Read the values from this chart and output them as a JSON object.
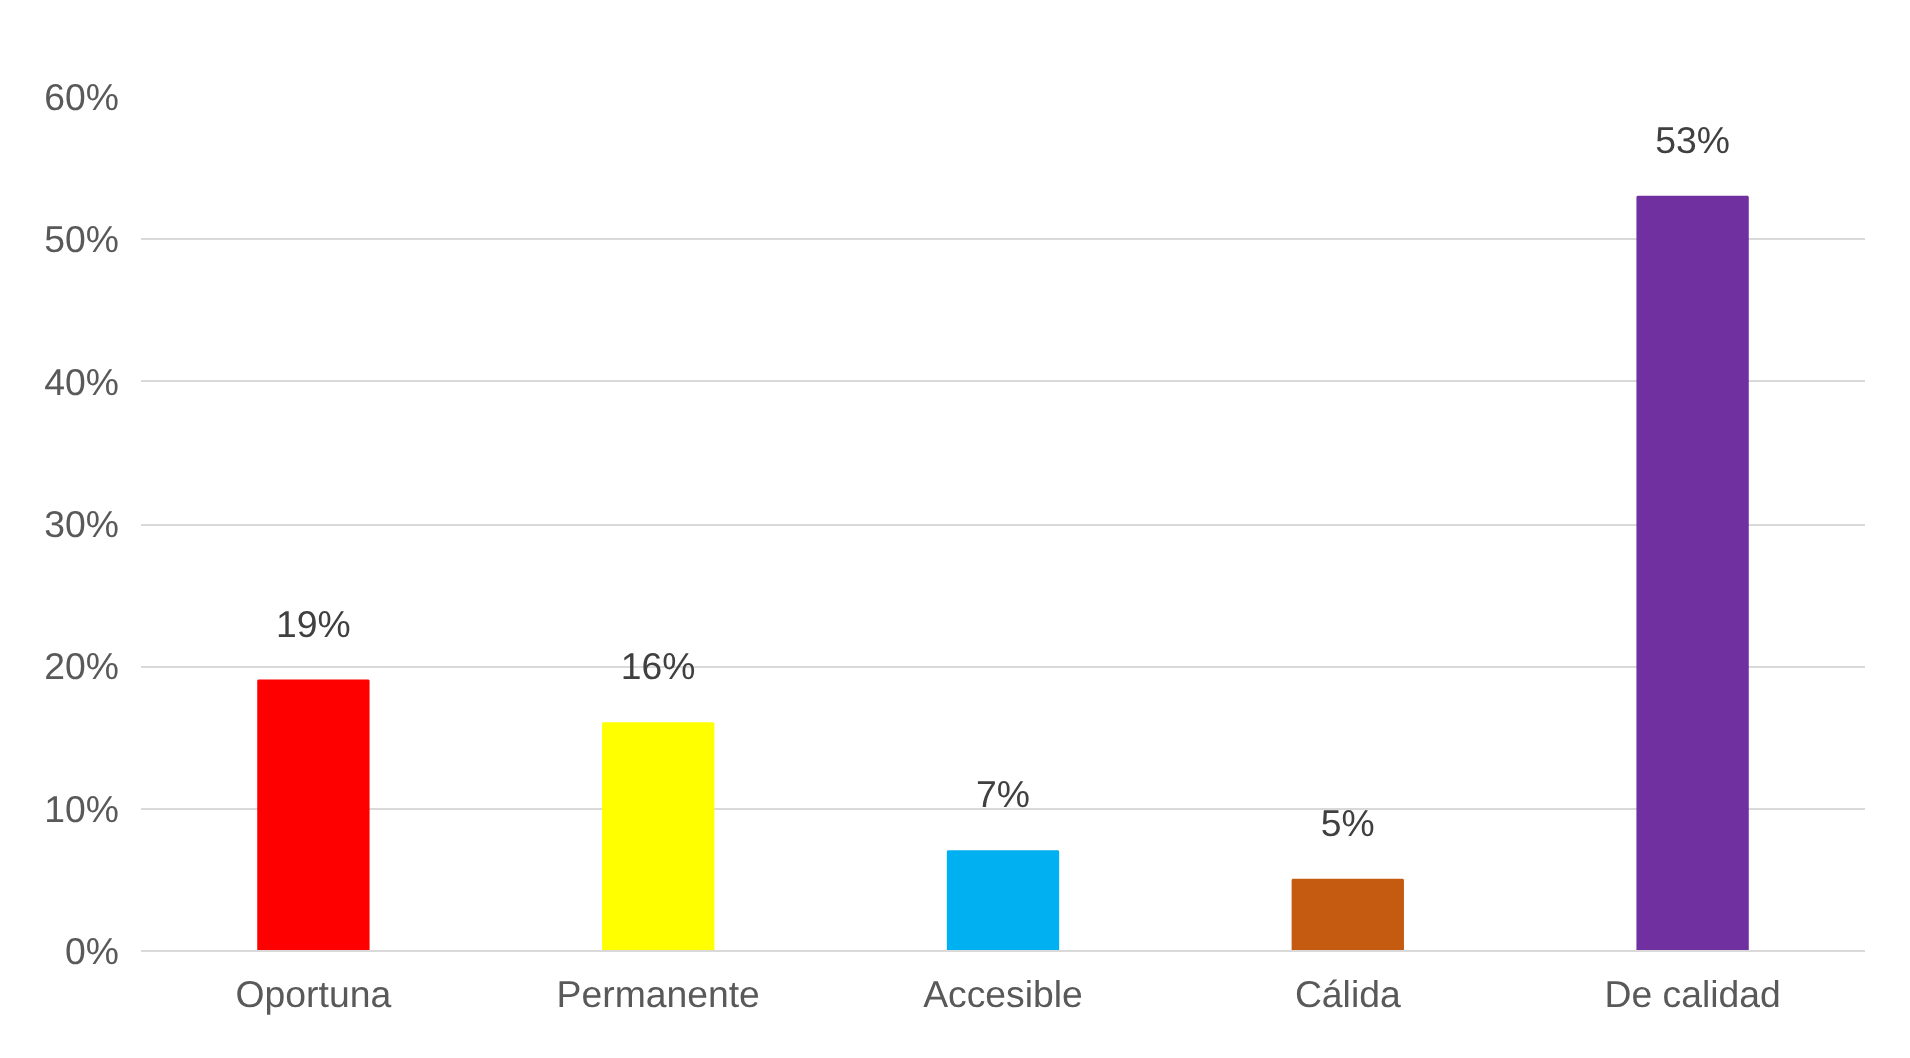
{
  "chart_data": {
    "type": "bar",
    "categories": [
      "Oportuna",
      "Permanente",
      "Accesible",
      "Cálida",
      "De calidad"
    ],
    "values": [
      19,
      16,
      7,
      5,
      53
    ],
    "colors": [
      "#ff0000",
      "#ffff00",
      "#00b0f0",
      "#c55a11",
      "#7030a0"
    ],
    "value_labels": [
      "19%",
      "16%",
      "7%",
      "5%",
      "53%"
    ],
    "ylim": [
      0,
      60
    ],
    "yticks": [
      {
        "value": 0,
        "label": "0%"
      },
      {
        "value": 10,
        "label": "10%"
      },
      {
        "value": 20,
        "label": "20%"
      },
      {
        "value": 30,
        "label": "30%"
      },
      {
        "value": 40,
        "label": "40%"
      },
      {
        "value": 50,
        "label": "50%"
      },
      {
        "value": 60,
        "label": "60%"
      }
    ],
    "grid": "y"
  }
}
